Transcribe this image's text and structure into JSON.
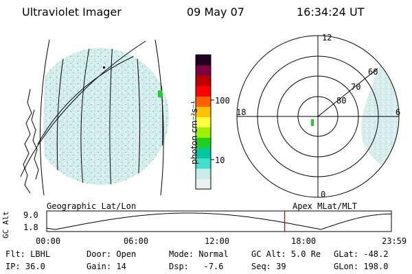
{
  "header": {
    "instrument": "Ultraviolet Imager",
    "date": "09 May 07",
    "time": "16:34:24 UT"
  },
  "colorbar": {
    "unit_label": "photon cm⁻²s⁻¹",
    "ticks": [
      {
        "label": "10",
        "value": 10
      },
      {
        "label": "100",
        "value": 100
      }
    ],
    "stops": [
      "#e8f0f0",
      "#c8ecec",
      "#40e0d0",
      "#00c8a0",
      "#20d020",
      "#a0f000",
      "#ffff40",
      "#ffc000",
      "#ff6000",
      "#ff0000",
      "#c00000",
      "#800040",
      "#200020"
    ]
  },
  "polar_plot": {
    "mlt_labels": {
      "top": "12",
      "left": "18",
      "right": "6",
      "bottom": "0"
    },
    "lat_labels": [
      "80",
      "70",
      "60"
    ]
  },
  "timeline": {
    "left_caption": "Geographic Lat/Lon",
    "right_caption": "Apex MLat/MLT",
    "yaxis_label": "GC Alt",
    "ymax": "9.0",
    "ymin": "1.8",
    "ymax_value": 9.0,
    "ymin_value": 1.8,
    "xticks": [
      "00:00",
      "06:00",
      "12:00",
      "18:00",
      "23:59"
    ],
    "current_time_hours": 16.57,
    "marker_color": "#d00000"
  },
  "footer": [
    {
      "key": "Flt:",
      "value": "LBHL"
    },
    {
      "key": "Door:",
      "value": "Open"
    },
    {
      "key": "Mode:",
      "value": "Normal"
    },
    {
      "key": "GC Alt:",
      "value": "5.0 Re"
    },
    {
      "key": "GLat:",
      "value": "-48.2"
    },
    {
      "key": "IP:",
      "value": "36.0"
    },
    {
      "key": "Gain:",
      "value": "14"
    },
    {
      "key": "Dsp:",
      "value": "  -7.6"
    },
    {
      "key": "Seq:",
      "value": "39"
    },
    {
      "key": "GLon:",
      "value": "198.0"
    }
  ]
}
